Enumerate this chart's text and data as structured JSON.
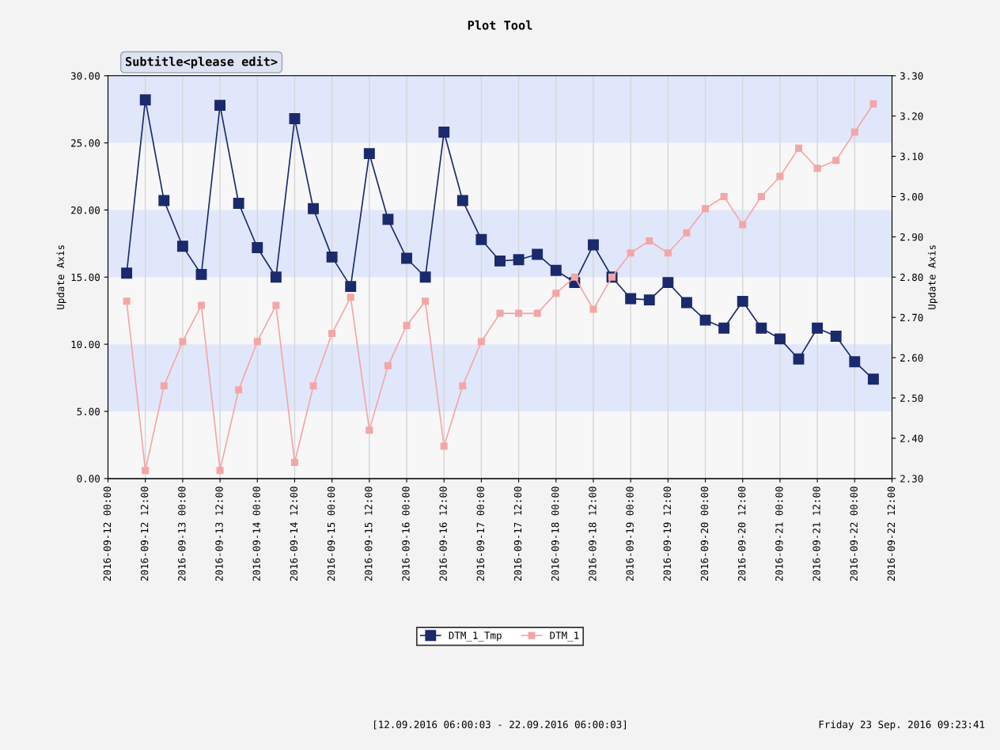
{
  "chart_data": {
    "type": "line",
    "title": "Plot Tool",
    "subtitle": "Subtitle<please edit>",
    "ylabel": "Update Axis",
    "y2label": "Update Axis",
    "annotations": [
      "[12.09.2016 06:00:03 - 22.09.2016 06:00:03]",
      "Friday 23 Sep. 2016 09:23:41"
    ],
    "x": [
      "2016-09-12T06:00",
      "2016-09-12T12:00",
      "2016-09-12T18:00",
      "2016-09-13T00:00",
      "2016-09-13T06:00",
      "2016-09-13T12:00",
      "2016-09-13T18:00",
      "2016-09-14T00:00",
      "2016-09-14T06:00",
      "2016-09-14T12:00",
      "2016-09-14T18:00",
      "2016-09-15T00:00",
      "2016-09-15T06:00",
      "2016-09-15T12:00",
      "2016-09-15T18:00",
      "2016-09-16T00:00",
      "2016-09-16T06:00",
      "2016-09-16T12:00",
      "2016-09-16T18:00",
      "2016-09-17T00:00",
      "2016-09-17T06:00",
      "2016-09-17T12:00",
      "2016-09-17T18:00",
      "2016-09-18T00:00",
      "2016-09-18T06:00",
      "2016-09-18T12:00",
      "2016-09-18T18:00",
      "2016-09-19T00:00",
      "2016-09-19T06:00",
      "2016-09-19T12:00",
      "2016-09-19T18:00",
      "2016-09-20T00:00",
      "2016-09-20T06:00",
      "2016-09-20T12:00",
      "2016-09-20T18:00",
      "2016-09-21T00:00",
      "2016-09-21T06:00",
      "2016-09-21T12:00",
      "2016-09-21T18:00",
      "2016-09-22T00:00",
      "2016-09-22T06:00"
    ],
    "series": [
      {
        "name": "DTM_1_Tmp",
        "color": "#1a2a6c",
        "values": [
          15.3,
          28.2,
          20.7,
          17.3,
          15.2,
          27.8,
          20.5,
          17.2,
          15.0,
          26.8,
          20.1,
          16.5,
          14.3,
          24.2,
          19.3,
          16.4,
          15.0,
          25.8,
          20.7,
          17.8,
          16.2,
          16.3,
          16.7,
          15.5,
          14.6,
          17.4,
          15.0,
          13.4,
          13.3,
          14.6,
          13.1,
          11.8,
          11.2,
          13.2,
          11.2,
          10.4,
          8.9,
          11.2,
          10.6,
          8.7,
          7.4
        ]
      },
      {
        "name": "DTM_1",
        "color": "#f4a6a6",
        "axis": "y2",
        "values": [
          2.74,
          2.32,
          2.53,
          2.64,
          2.73,
          2.32,
          2.52,
          2.64,
          2.73,
          2.34,
          2.53,
          2.66,
          2.75,
          2.42,
          2.58,
          2.68,
          2.74,
          2.38,
          2.53,
          2.64,
          2.71,
          2.71,
          2.71,
          2.76,
          2.8,
          2.72,
          2.8,
          2.86,
          2.89,
          2.86,
          2.91,
          2.97,
          3.0,
          2.93,
          3.0,
          3.05,
          3.12,
          3.07,
          3.09,
          3.16,
          3.23
        ]
      }
    ],
    "xlim": [
      "2016-09-12T00:00",
      "2016-09-22T12:00"
    ],
    "xticks": [
      {
        "value": "2016-09-12T00:00",
        "label": "2016-09-12 00:00"
      },
      {
        "value": "2016-09-12T12:00",
        "label": "2016-09-12 12:00"
      },
      {
        "value": "2016-09-13T00:00",
        "label": "2016-09-13 00:00"
      },
      {
        "value": "2016-09-13T12:00",
        "label": "2016-09-13 12:00"
      },
      {
        "value": "2016-09-14T00:00",
        "label": "2016-09-14 00:00"
      },
      {
        "value": "2016-09-14T12:00",
        "label": "2016-09-14 12:00"
      },
      {
        "value": "2016-09-15T00:00",
        "label": "2016-09-15 00:00"
      },
      {
        "value": "2016-09-15T12:00",
        "label": "2016-09-15 12:00"
      },
      {
        "value": "2016-09-16T00:00",
        "label": "2016-09-16 00:00"
      },
      {
        "value": "2016-09-16T12:00",
        "label": "2016-09-16 12:00"
      },
      {
        "value": "2016-09-17T00:00",
        "label": "2016-09-17 00:00"
      },
      {
        "value": "2016-09-17T12:00",
        "label": "2016-09-17 12:00"
      },
      {
        "value": "2016-09-18T00:00",
        "label": "2016-09-18 00:00"
      },
      {
        "value": "2016-09-18T12:00",
        "label": "2016-09-18 12:00"
      },
      {
        "value": "2016-09-19T00:00",
        "label": "2016-09-19 00:00"
      },
      {
        "value": "2016-09-19T12:00",
        "label": "2016-09-19 12:00"
      },
      {
        "value": "2016-09-20T00:00",
        "label": "2016-09-20 00:00"
      },
      {
        "value": "2016-09-20T12:00",
        "label": "2016-09-20 12:00"
      },
      {
        "value": "2016-09-21T00:00",
        "label": "2016-09-21 00:00"
      },
      {
        "value": "2016-09-21T12:00",
        "label": "2016-09-21 12:00"
      },
      {
        "value": "2016-09-22T00:00",
        "label": "2016-09-22 00:00"
      },
      {
        "value": "2016-09-22T12:00",
        "label": "2016-09-22 12:00"
      }
    ],
    "ylim": [
      0,
      30
    ],
    "yticks": [
      {
        "value": 0,
        "label": "0.00"
      },
      {
        "value": 5,
        "label": "5.00"
      },
      {
        "value": 10,
        "label": "10.00"
      },
      {
        "value": 15,
        "label": "15.00"
      },
      {
        "value": 20,
        "label": "20.00"
      },
      {
        "value": 25,
        "label": "25.00"
      },
      {
        "value": 30,
        "label": "30.00"
      }
    ],
    "y2lim": [
      2.3,
      3.3
    ],
    "y2ticks": [
      {
        "value": 2.3,
        "label": "2.30"
      },
      {
        "value": 2.4,
        "label": "2.40"
      },
      {
        "value": 2.5,
        "label": "2.50"
      },
      {
        "value": 2.6,
        "label": "2.60"
      },
      {
        "value": 2.7,
        "label": "2.70"
      },
      {
        "value": 2.8,
        "label": "2.80"
      },
      {
        "value": 2.9,
        "label": "2.90"
      },
      {
        "value": 3.0,
        "label": "3.00"
      },
      {
        "value": 3.1,
        "label": "3.10"
      },
      {
        "value": 3.2,
        "label": "3.20"
      },
      {
        "value": 3.3,
        "label": "3.30"
      }
    ],
    "bands": [
      {
        "axis": "y",
        "from": 5,
        "to": 10,
        "color": "#e0e7fb"
      },
      {
        "axis": "y",
        "from": 15,
        "to": 20,
        "color": "#e0e7fb"
      },
      {
        "axis": "y",
        "from": 25,
        "to": 30,
        "color": "#e0e7fb"
      }
    ],
    "grid": "x",
    "legend": "bottom",
    "marker": "square",
    "line_style": "solid"
  }
}
